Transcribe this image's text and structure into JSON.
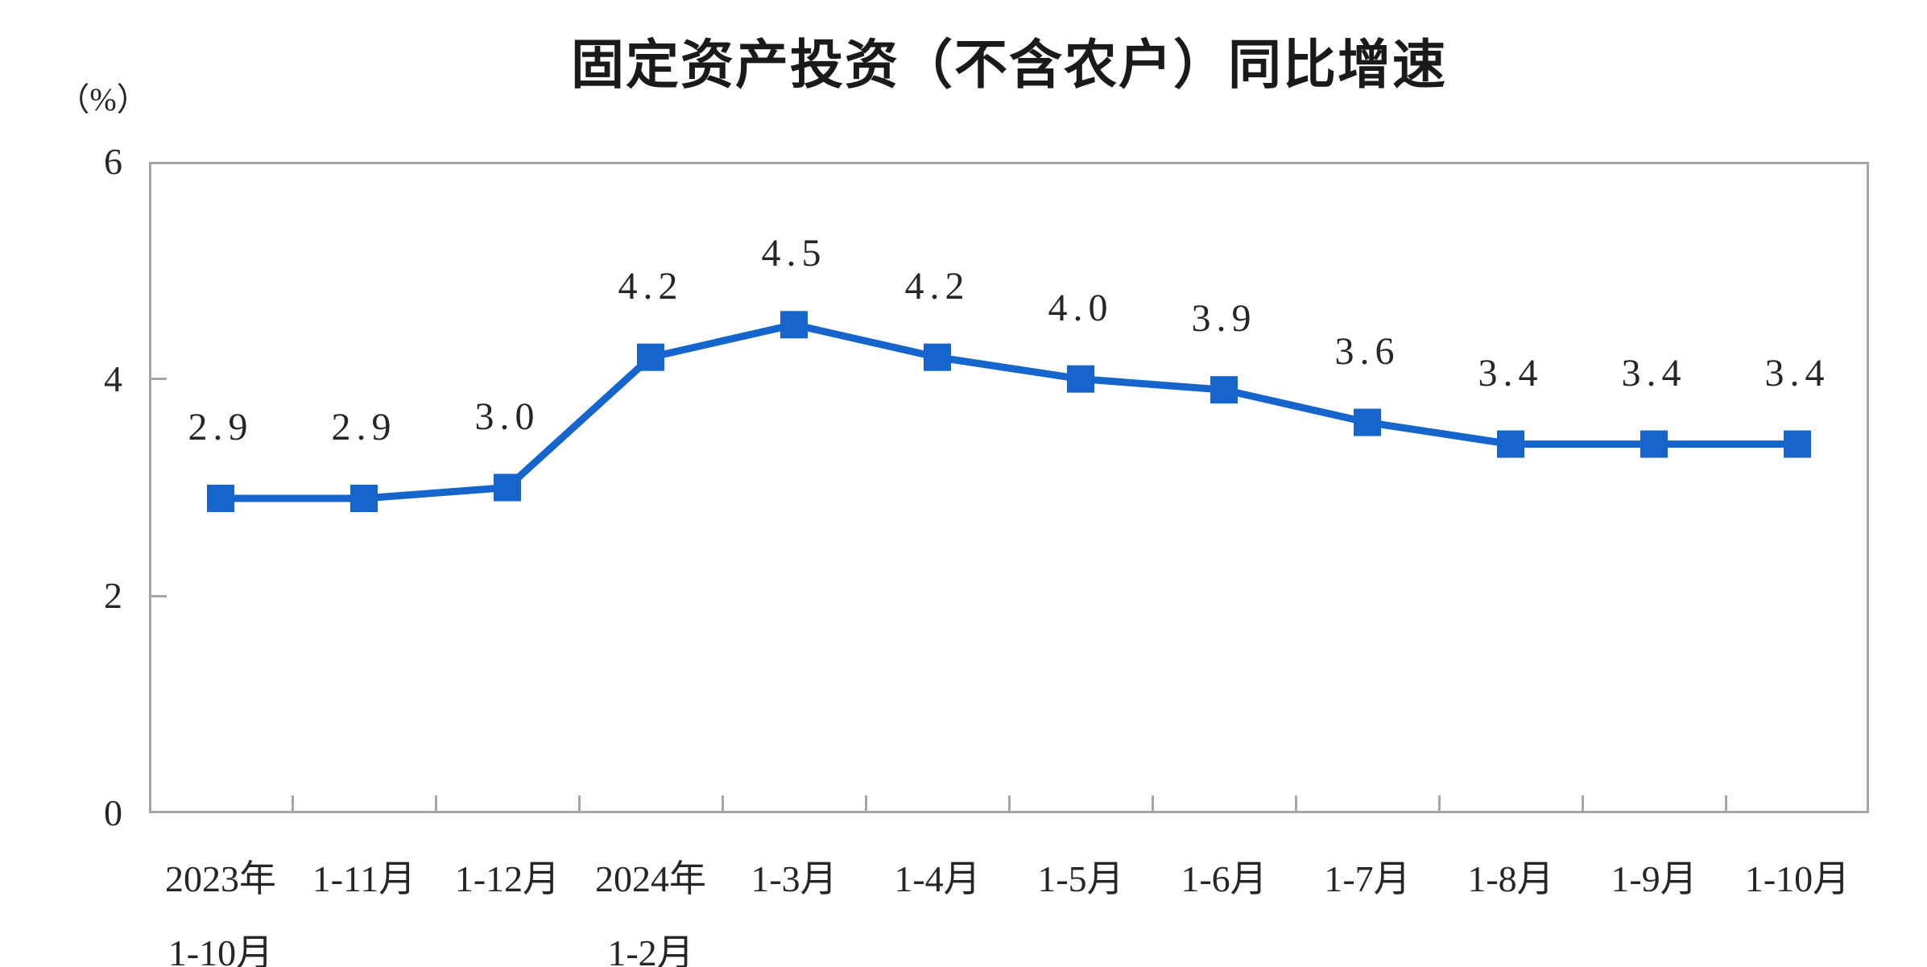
{
  "chart": {
    "title": "固定资产投资（不含农户）同比增速",
    "y_unit_label": "（%）"
  },
  "chart_data": {
    "type": "line",
    "title": "固定资产投资（不含农户）同比增速",
    "ylabel": "（%）",
    "ylim": [
      0,
      6
    ],
    "yticks": [
      0,
      2,
      4,
      6
    ],
    "grid": false,
    "legend_position": "none",
    "line_color": "#1565cd",
    "marker": "square",
    "axis_color": "#a6a6a6",
    "categories": [
      {
        "lines": [
          "2023年",
          "1-10月"
        ]
      },
      {
        "lines": [
          "1-11月"
        ]
      },
      {
        "lines": [
          "1-12月"
        ]
      },
      {
        "lines": [
          "2024年",
          "1-2月"
        ]
      },
      {
        "lines": [
          "1-3月"
        ]
      },
      {
        "lines": [
          "1-4月"
        ]
      },
      {
        "lines": [
          "1-5月"
        ]
      },
      {
        "lines": [
          "1-6月"
        ]
      },
      {
        "lines": [
          "1-7月"
        ]
      },
      {
        "lines": [
          "1-8月"
        ]
      },
      {
        "lines": [
          "1-9月"
        ]
      },
      {
        "lines": [
          "1-10月"
        ]
      }
    ],
    "series": [
      {
        "values": [
          2.9,
          2.9,
          3.0,
          4.2,
          4.5,
          4.2,
          4.0,
          3.9,
          3.6,
          3.4,
          3.4,
          3.4
        ],
        "labels": [
          "2.9",
          "2.9",
          "3.0",
          "4.2",
          "4.5",
          "4.2",
          "4.0",
          "3.9",
          "3.6",
          "3.4",
          "3.4",
          "3.4"
        ]
      }
    ]
  }
}
